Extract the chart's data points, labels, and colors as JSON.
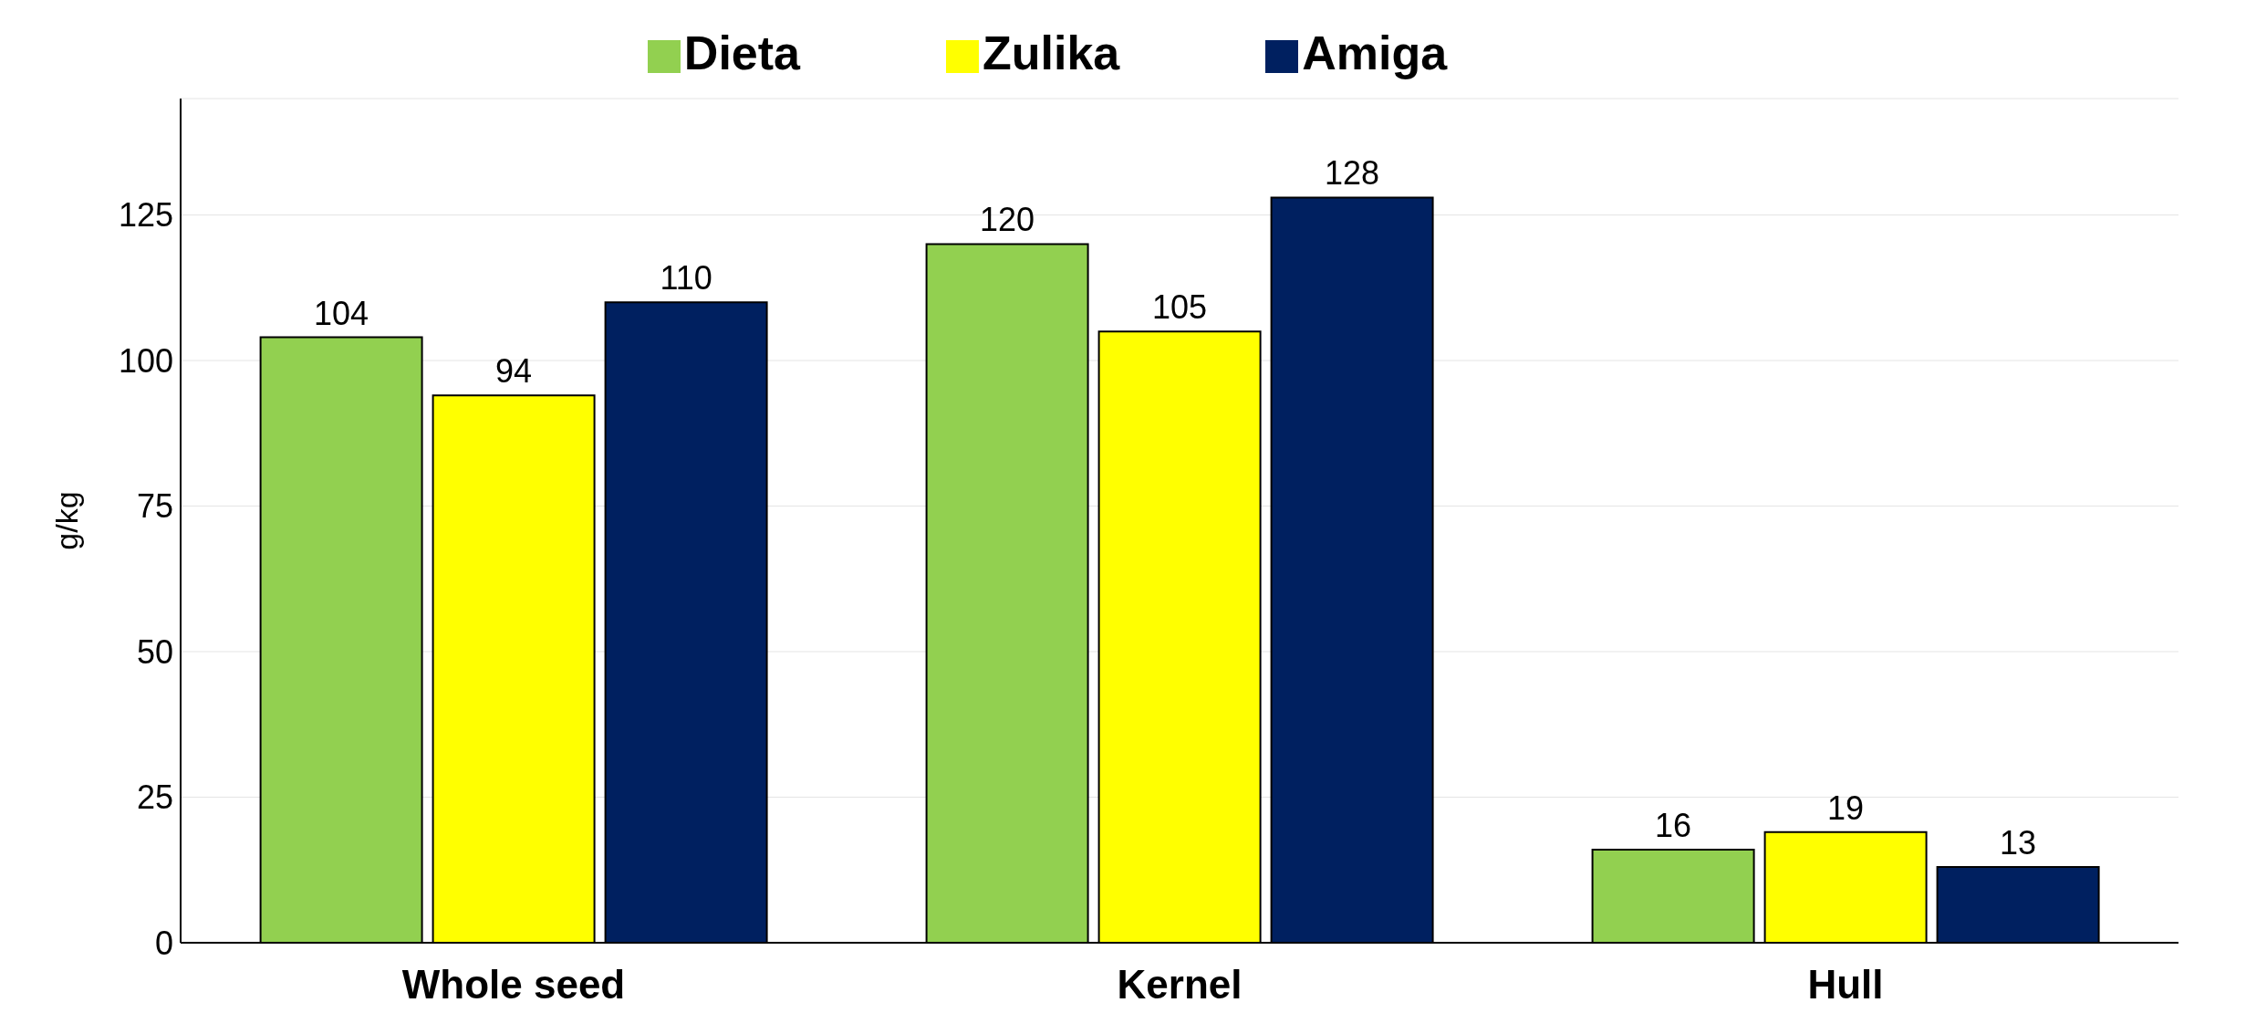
{
  "chart_data": {
    "type": "bar",
    "ylabel": "g/kg",
    "categories": [
      "Whole seed",
      "Kernel",
      "Hull"
    ],
    "series": [
      {
        "name": "Dieta",
        "color": "#92d050",
        "values": [
          104,
          120,
          16
        ]
      },
      {
        "name": "Zulika",
        "color": "#ffff00",
        "values": [
          94,
          105,
          19
        ]
      },
      {
        "name": "Amiga",
        "color": "#002060",
        "values": [
          110,
          128,
          13
        ]
      }
    ],
    "ylim": [
      0,
      145
    ],
    "yticks": [
      0,
      25,
      50,
      75,
      100,
      125
    ],
    "grid": "y",
    "legend": "top",
    "data_labels": true
  }
}
